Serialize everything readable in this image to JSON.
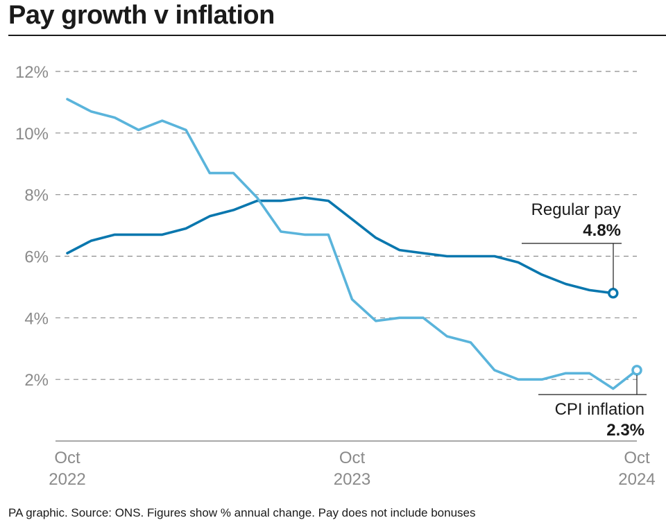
{
  "title": "Pay growth v inflation",
  "footer": "PA graphic. Source: ONS. Figures show % annual change. Pay does not include bonuses",
  "chart_data": {
    "type": "line",
    "x_ticks": [
      {
        "month": "Oct",
        "year": "2022",
        "index": 0
      },
      {
        "month": "Oct",
        "year": "2023",
        "index": 12
      },
      {
        "month": "Oct",
        "year": "2024",
        "index": 24
      }
    ],
    "y_ticks": [
      2,
      4,
      6,
      8,
      10,
      12
    ],
    "y_tick_suffix": "%",
    "ylim": [
      0,
      12
    ],
    "grid": true,
    "grid_style": "dashed",
    "series": [
      {
        "name": "Regular pay",
        "label_value": "4.8%",
        "color": "#0a77ae",
        "start": "Oct 2022",
        "values": [
          6.1,
          6.5,
          6.7,
          6.7,
          6.7,
          6.9,
          7.3,
          7.5,
          7.8,
          7.8,
          7.9,
          7.8,
          7.2,
          6.6,
          6.2,
          6.1,
          6.0,
          6.0,
          6.0,
          5.8,
          5.4,
          5.1,
          4.9,
          4.8
        ]
      },
      {
        "name": "CPI inflation",
        "label_value": "2.3%",
        "color": "#5ab4db",
        "start": "Oct 2022",
        "values": [
          11.1,
          10.7,
          10.5,
          10.1,
          10.4,
          10.1,
          8.7,
          8.7,
          7.9,
          6.8,
          6.7,
          6.7,
          4.6,
          3.9,
          4.0,
          4.0,
          3.4,
          3.2,
          2.3,
          2.0,
          2.0,
          2.2,
          2.2,
          1.7,
          2.3
        ]
      }
    ]
  }
}
